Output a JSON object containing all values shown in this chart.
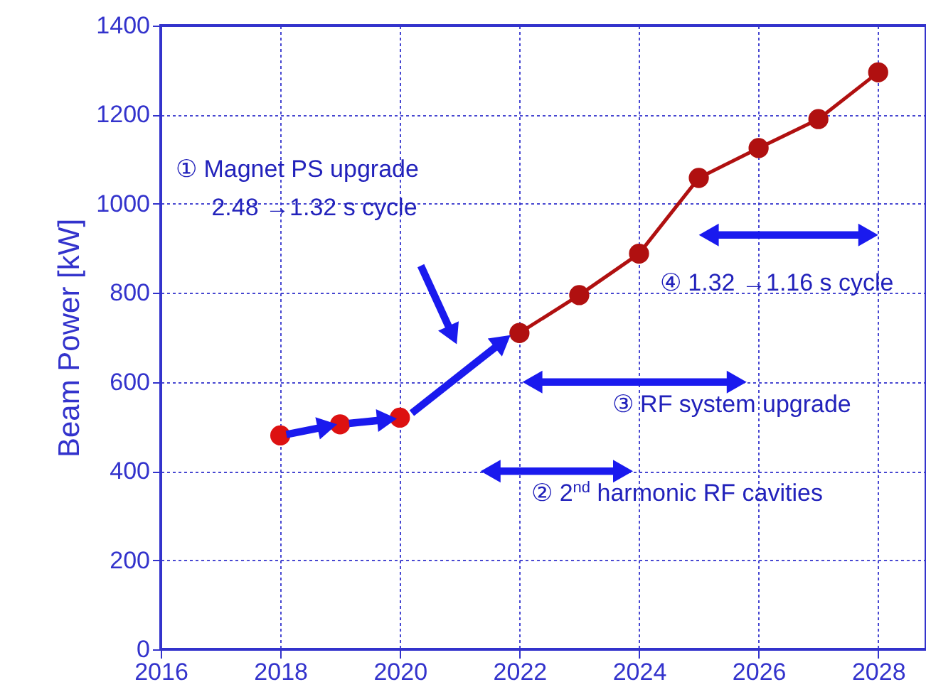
{
  "chart_data": {
    "type": "line",
    "ylabel": "Beam Power [kW]",
    "series": [
      {
        "type": "scatter",
        "x": [
          2018,
          2019,
          2020
        ],
        "values": [
          480,
          505,
          520
        ],
        "color": "#dd1111"
      },
      {
        "x": [
          2022,
          2023,
          2024,
          2025,
          2026,
          2027,
          2028
        ],
        "values": [
          710,
          795,
          888,
          1058,
          1125,
          1190,
          1295
        ],
        "color": "#b01010"
      }
    ],
    "xlim": [
      2016,
      2028.8
    ],
    "xticks": [
      2016,
      2018,
      2020,
      2022,
      2024,
      2026,
      2028
    ],
    "ylim": [
      0,
      1400
    ],
    "yticks": [
      0,
      200,
      400,
      600,
      800,
      1000,
      1200,
      1400
    ],
    "grid": true,
    "marker": "circle",
    "annotations": [
      "① Magnet PS upgrade",
      "2.48 →1.32 s cycle",
      "④ 1.32 →1.16 s cycle",
      "③ RF system upgrade",
      "② 2$^{nd}$ harmonic RF cavities"
    ]
  }
}
